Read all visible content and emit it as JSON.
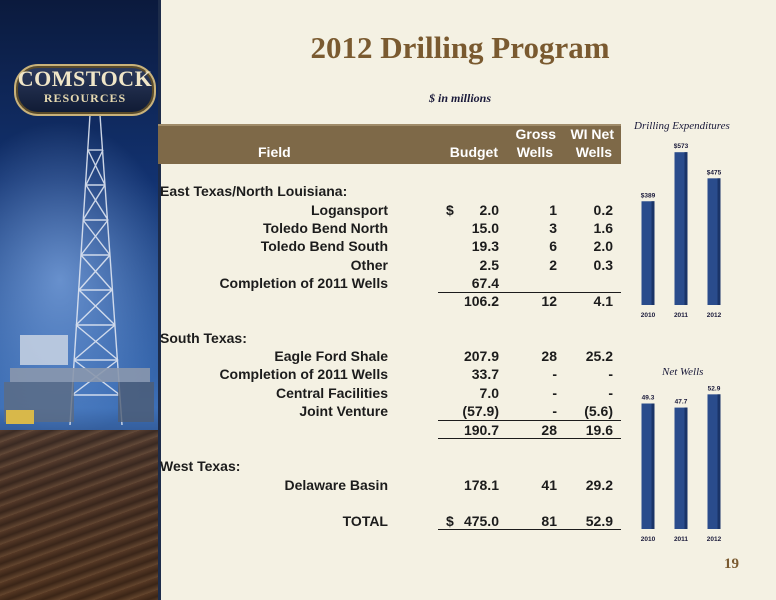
{
  "logo": {
    "line1": "COMSTOCK",
    "line2": "RESOURCES"
  },
  "title": "2012 Drilling Program",
  "subtitle": "$ in millions",
  "table": {
    "headers": {
      "field": "Field",
      "budget": "Budget",
      "gross_top": "Gross",
      "gross_bottom": "Wells",
      "wi_top": "WI Net",
      "wi_bottom": "Wells"
    },
    "rows": [
      {
        "kind": "section",
        "field": "East Texas/North Louisiana:"
      },
      {
        "kind": "item",
        "field": "Logansport",
        "dollar": "$",
        "budget": "2.0",
        "gross": "1",
        "wi": "0.2"
      },
      {
        "kind": "item",
        "field": "Toledo Bend North",
        "budget": "15.0",
        "gross": "3",
        "wi": "1.6"
      },
      {
        "kind": "item",
        "field": "Toledo Bend South",
        "budget": "19.3",
        "gross": "6",
        "wi": "2.0"
      },
      {
        "kind": "item",
        "field": "Other",
        "budget": "2.5",
        "gross": "2",
        "wi": "0.3"
      },
      {
        "kind": "item",
        "field": "Completion of 2011 Wells",
        "budget": "67.4",
        "gross": "",
        "wi": ""
      },
      {
        "kind": "subtotal",
        "field": "",
        "budget": "106.2",
        "gross": "12",
        "wi": "4.1"
      },
      {
        "kind": "section",
        "field": "South Texas:"
      },
      {
        "kind": "item",
        "field": "Eagle Ford Shale",
        "budget": "207.9",
        "gross": "28",
        "wi": "25.2"
      },
      {
        "kind": "item",
        "field": "Completion of 2011 Wells",
        "budget": "33.7",
        "gross": "-",
        "wi": "-"
      },
      {
        "kind": "item",
        "field": "Central Facilities",
        "budget": "7.0",
        "gross": "-",
        "wi": "-"
      },
      {
        "kind": "item",
        "field": "Joint Venture",
        "budget": "(57.9)",
        "gross": "-",
        "wi": "(5.6)"
      },
      {
        "kind": "subtotal",
        "field": "",
        "budget": "190.7",
        "gross": "28",
        "wi": "19.6"
      },
      {
        "kind": "section",
        "field": "West Texas:"
      },
      {
        "kind": "item",
        "field": "Delaware Basin",
        "budget": "178.1",
        "gross": "41",
        "wi": "29.2"
      },
      {
        "kind": "total",
        "field": "TOTAL",
        "dollar": "$",
        "budget": "475.0",
        "gross": "81",
        "wi": "52.9"
      }
    ]
  },
  "chart_data": [
    {
      "type": "bar",
      "title": "Drilling Expenditures",
      "categories": [
        "2010",
        "2011",
        "2012"
      ],
      "values": [
        389,
        573,
        475
      ],
      "value_labels": [
        "$389",
        "$573",
        "$475"
      ],
      "ylim": [
        0,
        600
      ],
      "color": "#2a4c8c"
    },
    {
      "type": "bar",
      "title": "Net Wells",
      "categories": [
        "2010",
        "2011",
        "2012"
      ],
      "values": [
        49.3,
        47.7,
        52.9
      ],
      "value_labels": [
        "49.3",
        "47.7",
        "52.9"
      ],
      "ylim": [
        0,
        55
      ],
      "color": "#2a4c8c"
    }
  ],
  "page_number": "19"
}
